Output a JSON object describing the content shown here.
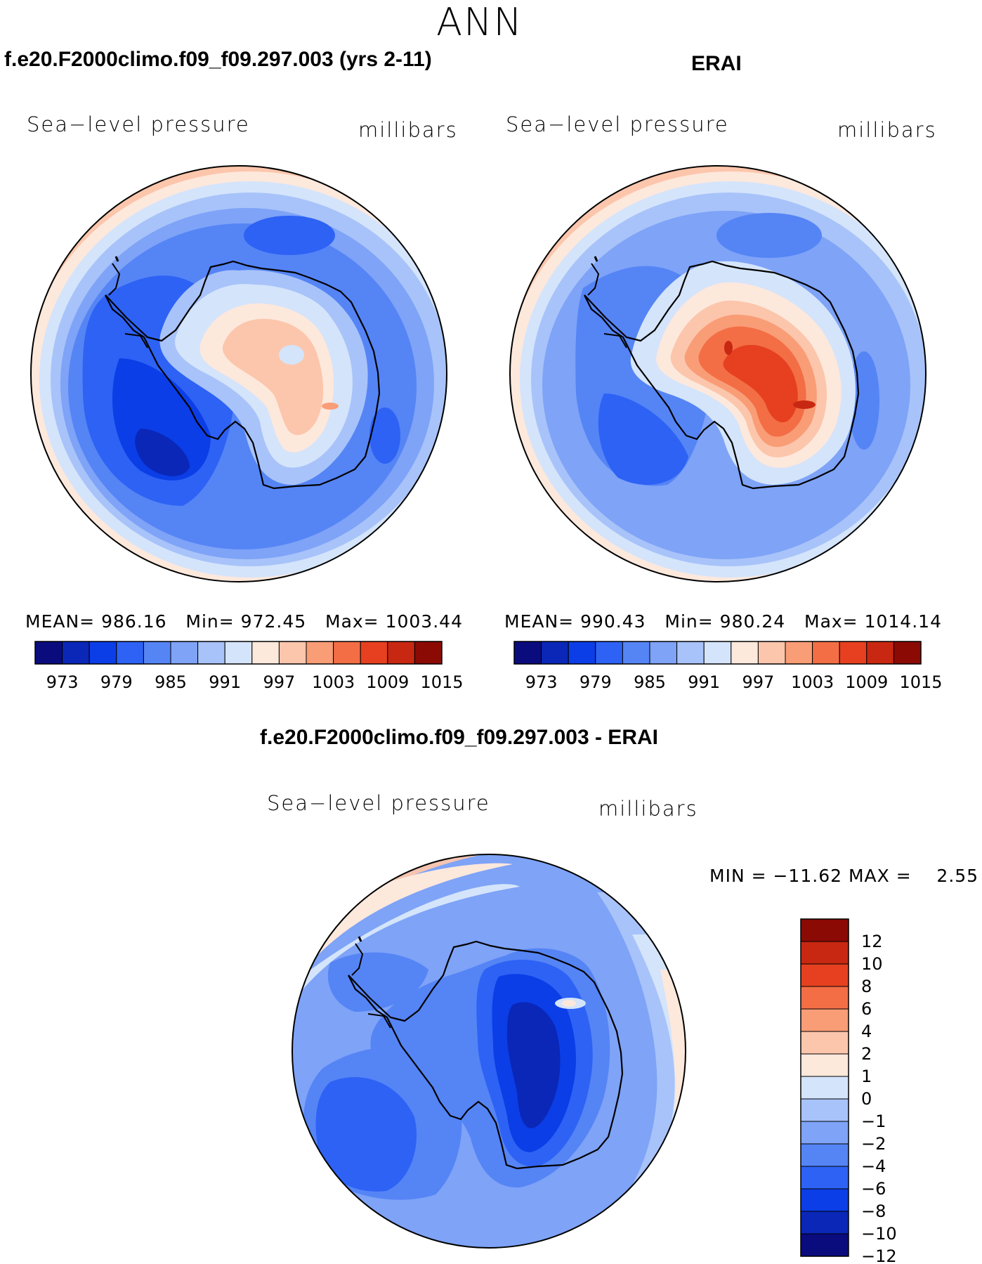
{
  "page": {
    "main_title": "ANN"
  },
  "panels": [
    {
      "id": "model",
      "title": "f.e20.F2000climo.f09_f09.297.003 (yrs 2-11)",
      "variable_label": "Sea−level pressure",
      "units_label": "millibars",
      "stats": {
        "mean_label": "MEAN=",
        "mean": "986.16",
        "min_label": "Min=",
        "min": "972.45",
        "max_label": "Max=",
        "max": "1003.44"
      }
    },
    {
      "id": "obs",
      "title": "ERAI",
      "variable_label": "Sea−level pressure",
      "units_label": "millibars",
      "stats": {
        "mean_label": "MEAN=",
        "mean": "990.43",
        "min_label": "Min=",
        "min": "980.24",
        "max_label": "Max=",
        "max": "1014.14"
      }
    },
    {
      "id": "diff",
      "title": "f.e20.F2000climo.f09_f09.297.003 - ERAI",
      "variable_label": "Sea−level pressure",
      "units_label": "millibars",
      "stats": {
        "text": "MIN = −11.62 MAX =    2.55"
      }
    }
  ],
  "colors": {
    "slp_scale": [
      "#0a0c7e",
      "#0a27b8",
      "#0b3ee6",
      "#2d62f5",
      "#5584f5",
      "#7ea3f7",
      "#a8c3f9",
      "#d4e4fb",
      "#fde8dc",
      "#fcc6ac",
      "#f99d77",
      "#f36e45",
      "#e64020",
      "#c82712",
      "#8c0a04"
    ],
    "diff_scale": [
      "#0a0c7e",
      "#0a27b8",
      "#0b3ee6",
      "#2d62f5",
      "#5584f5",
      "#7ea3f7",
      "#a8c3f9",
      "#d4e4fb",
      "#fde8dc",
      "#fcc6ac",
      "#f99d77",
      "#f36e45",
      "#e64020",
      "#c82712",
      "#8c0a04"
    ],
    "land_outline": "#000000"
  },
  "chart_data": [
    {
      "type": "polar contour map",
      "title": "f.e20.F2000climo.f09_f09.297.003 (yrs 2-11)",
      "variable": "Sea-level pressure",
      "units": "millibars",
      "levels": [
        970,
        973,
        976,
        979,
        982,
        985,
        988,
        991,
        994,
        997,
        1000,
        1003,
        1006,
        1009,
        1012,
        1015,
        1018
      ],
      "colorbar_tick_labels": [
        "973",
        "979",
        "985",
        "991",
        "997",
        "1003",
        "1009",
        "1015"
      ],
      "mean": 986.16,
      "min": 972.45,
      "max": 1003.44
    },
    {
      "type": "polar contour map",
      "title": "ERAI",
      "variable": "Sea-level pressure",
      "units": "millibars",
      "levels": [
        970,
        973,
        976,
        979,
        982,
        985,
        988,
        991,
        994,
        997,
        1000,
        1003,
        1006,
        1009,
        1012,
        1015,
        1018
      ],
      "colorbar_tick_labels": [
        "973",
        "979",
        "985",
        "991",
        "997",
        "1003",
        "1009",
        "1015"
      ],
      "mean": 990.43,
      "min": 980.24,
      "max": 1014.14
    },
    {
      "type": "polar contour map (difference)",
      "title": "f.e20.F2000climo.f09_f09.297.003 - ERAI",
      "variable": "Sea-level pressure",
      "units": "millibars",
      "colorbar_tick_labels": [
        "12",
        "10",
        "8",
        "6",
        "4",
        "2",
        "1",
        "0",
        "−1",
        "−2",
        "−4",
        "−6",
        "−8",
        "−10",
        "−12"
      ],
      "min": -11.62,
      "max": 2.55
    }
  ]
}
